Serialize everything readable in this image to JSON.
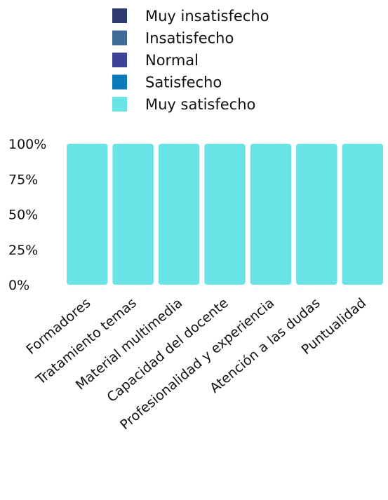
{
  "chart_data": {
    "type": "bar",
    "stacked": true,
    "percent_scale": true,
    "categories": [
      "Formadores",
      "Tratamiento temas",
      "Material multimedia",
      "Capacidad del docente",
      "Profesionalidad y experiencia",
      "Atención a las dudas",
      "Puntualidad"
    ],
    "series": [
      {
        "name": "Muy insatisfecho",
        "color": "#2e3a6e",
        "values": [
          0,
          0,
          0,
          0,
          0,
          0,
          0
        ]
      },
      {
        "name": "Insatisfecho",
        "color": "#3f6a93",
        "values": [
          0,
          0,
          0,
          0,
          0,
          0,
          0
        ]
      },
      {
        "name": "Normal",
        "color": "#3d4497",
        "values": [
          0,
          0,
          0,
          0,
          0,
          0,
          0
        ]
      },
      {
        "name": "Satisfecho",
        "color": "#0a7bb8",
        "values": [
          0,
          0,
          0,
          0,
          0,
          0,
          0
        ]
      },
      {
        "name": "Muy satisfecho",
        "color": "#6ae3e6",
        "values": [
          100,
          100,
          100,
          100,
          100,
          100,
          100
        ]
      }
    ],
    "y_ticks": [
      "0%",
      "25%",
      "50%",
      "75%",
      "100%"
    ],
    "ylim": [
      0,
      100
    ],
    "grid": false,
    "legend_position": "top"
  }
}
